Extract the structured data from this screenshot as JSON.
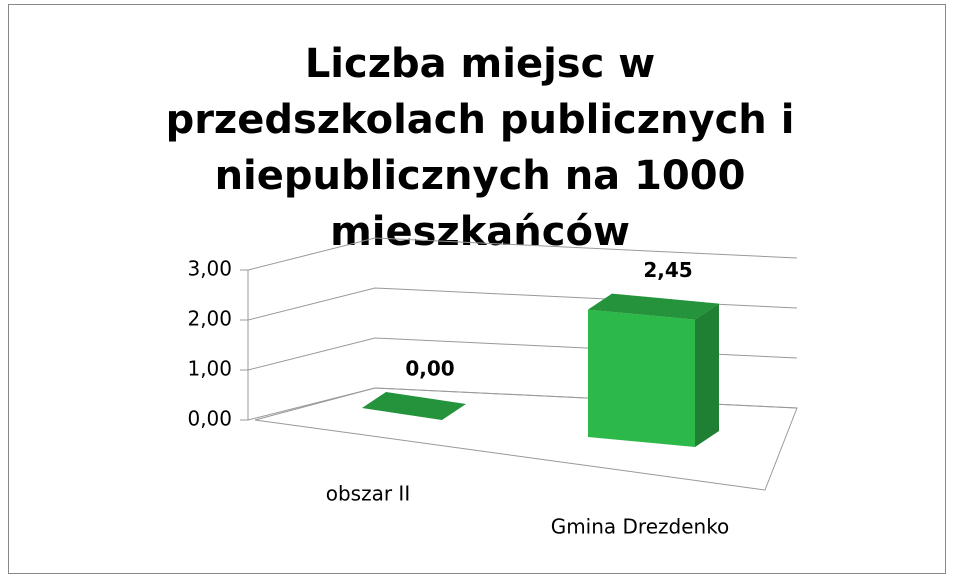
{
  "chart_data": {
    "type": "bar3d",
    "title": "Liczba miejsc w przedszkolach publicznych i niepublicznych na 1000 mieszkańców",
    "categories": [
      "obszar II",
      "Gmina Drezdenko"
    ],
    "values": [
      0,
      2.45
    ],
    "value_labels": [
      "0,00",
      "2,45"
    ],
    "color": "#2db84a",
    "ylim": [
      0,
      3
    ],
    "yticks": [
      {
        "value": 0,
        "label": "0,00"
      },
      {
        "value": 1,
        "label": "1,00"
      },
      {
        "value": 2,
        "label": "2,00"
      },
      {
        "value": 3,
        "label": "3,00"
      }
    ],
    "grid": true
  }
}
